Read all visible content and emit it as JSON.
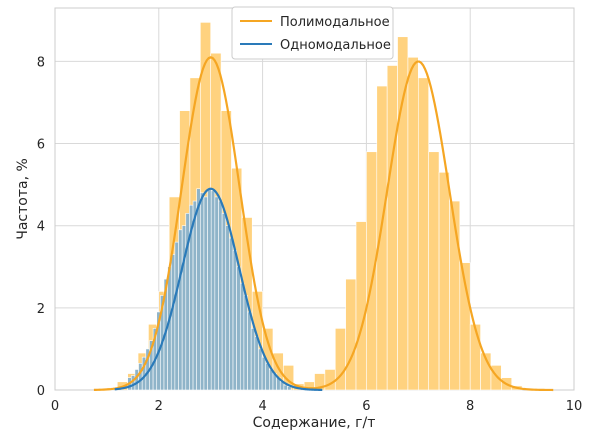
{
  "chart_data": {
    "type": "bar",
    "xlabel": "Содержание, г/т",
    "ylabel": "Частота, %",
    "xlim": [
      0,
      10
    ],
    "ylim": [
      0,
      9.3
    ],
    "xticks": [
      0,
      2,
      4,
      6,
      8,
      10
    ],
    "yticks": [
      0,
      2,
      4,
      6,
      8
    ],
    "grid": true,
    "legend_position": "top-center",
    "series": [
      {
        "name": "Полимодальное",
        "color": "#f5a623",
        "bar_color": "#ffd27f",
        "bin_width": 0.2,
        "bins_start": [
          1.0,
          1.2,
          1.4,
          1.6,
          1.8,
          2.0,
          2.2,
          2.4,
          2.6,
          2.8,
          3.0,
          3.2,
          3.4,
          3.6,
          3.8,
          4.0,
          4.2,
          4.4,
          4.6,
          4.8,
          5.0,
          5.2,
          5.4,
          5.6,
          5.8,
          6.0,
          6.2,
          6.4,
          6.6,
          6.8,
          7.0,
          7.2,
          7.4,
          7.6,
          7.8,
          8.0,
          8.2,
          8.4,
          8.6,
          8.8
        ],
        "heights": [
          0.05,
          0.2,
          0.4,
          0.9,
          1.6,
          2.4,
          4.7,
          6.8,
          7.6,
          8.95,
          8.2,
          6.8,
          5.4,
          4.2,
          2.4,
          1.5,
          0.9,
          0.6,
          0.15,
          0.2,
          0.4,
          0.5,
          1.5,
          2.7,
          4.1,
          5.8,
          7.4,
          7.9,
          8.6,
          8.1,
          7.6,
          5.8,
          5.3,
          4.6,
          3.1,
          1.6,
          0.9,
          0.6,
          0.3,
          0.1
        ],
        "curve": [
          {
            "mu": 3.0,
            "sigma": 0.56,
            "amp": 8.1
          },
          {
            "mu": 7.0,
            "sigma": 0.6,
            "amp": 8.0
          }
        ]
      },
      {
        "name": "Одномодальное",
        "color": "#2a7ab9",
        "bar_color": "#8fb4c9",
        "bin_width": 0.07,
        "bins_start": [
          1.4,
          1.47,
          1.54,
          1.61,
          1.68,
          1.75,
          1.82,
          1.89,
          1.96,
          2.03,
          2.1,
          2.17,
          2.24,
          2.31,
          2.38,
          2.45,
          2.52,
          2.59,
          2.66,
          2.73,
          2.8,
          2.87,
          2.94,
          3.01,
          3.08,
          3.15,
          3.22,
          3.29,
          3.36,
          3.43,
          3.5,
          3.57,
          3.64,
          3.71,
          3.78,
          3.85,
          3.92,
          3.99,
          4.06,
          4.13,
          4.2,
          4.27,
          4.34,
          4.41,
          4.48
        ],
        "heights": [
          0.3,
          0.35,
          0.5,
          0.65,
          0.8,
          1.0,
          1.2,
          1.5,
          1.9,
          2.3,
          2.7,
          3.0,
          3.3,
          3.6,
          3.9,
          4.0,
          4.3,
          4.5,
          4.6,
          4.9,
          4.8,
          4.7,
          4.9,
          4.85,
          4.7,
          4.6,
          4.3,
          4.0,
          3.7,
          3.4,
          3.0,
          2.6,
          2.3,
          1.9,
          1.5,
          1.3,
          1.0,
          0.8,
          0.65,
          0.5,
          0.4,
          0.3,
          0.2,
          0.12,
          0.08
        ],
        "curve": [
          {
            "mu": 3.0,
            "sigma": 0.55,
            "amp": 4.9
          }
        ]
      }
    ]
  }
}
